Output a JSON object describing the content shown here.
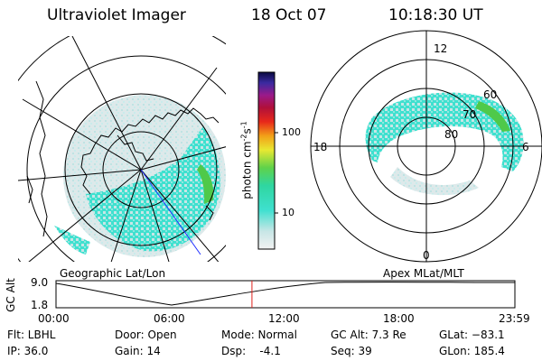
{
  "header": {
    "instrument": "Ultraviolet Imager",
    "date": "18 Oct 07",
    "time": "10:18:30 UT"
  },
  "panels": {
    "left_label": "Geographic Lat/Lon",
    "right_label": "Apex MLat/MLT"
  },
  "mlt_labels": {
    "top": "12",
    "left": "18",
    "right": "6",
    "bottom": "0"
  },
  "mlat_labels": [
    "60",
    "70",
    "80"
  ],
  "colorbar": {
    "unit_prefix": "photon cm",
    "unit_exp1": "-2",
    "unit_s": "s",
    "unit_exp2": "-1",
    "ticks": [
      "100",
      "10"
    ]
  },
  "altitude_plot": {
    "ylabel": "GC Alt",
    "y_ticks": [
      "9.0",
      "1.8"
    ],
    "x_ticks": [
      "00:00",
      "06:00",
      "12:00",
      "18:00",
      "23:59"
    ],
    "current_time_fraction": 0.427
  },
  "status": {
    "flt": "Flt: LBHL",
    "ip": "IP: 36.0",
    "door": "Door: Open",
    "gain": "Gain: 14",
    "mode": "Mode: Normal",
    "dsp": "Dsp:    -4.1",
    "gcalt": "GC Alt: 7.3 Re",
    "seq": "Seq: 39",
    "glat": "GLat: −83.1",
    "glon": "GLon: 185.4"
  },
  "colors": {
    "aurora_cyan": "#3fe0cf",
    "aurora_pale": "#c8e6e6",
    "aurora_green": "#4fc94a",
    "time_marker": "#e0201a",
    "track_line": "#2030ff"
  }
}
